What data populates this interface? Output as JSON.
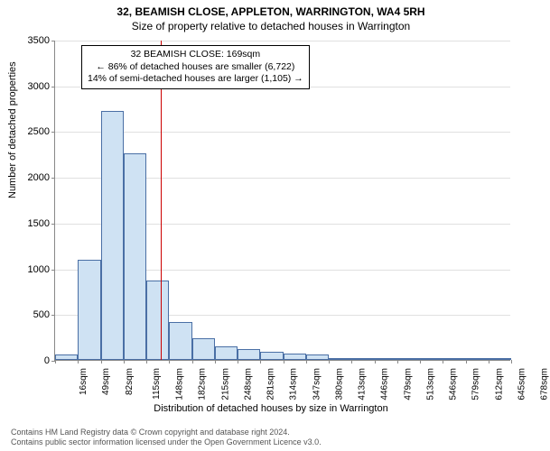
{
  "title": "32, BEAMISH CLOSE, APPLETON, WARRINGTON, WA4 5RH",
  "subtitle": "Size of property relative to detached houses in Warrington",
  "ylabel": "Number of detached properties",
  "xlabel": "Distribution of detached houses by size in Warrington",
  "chart": {
    "type": "histogram",
    "ylim": [
      0,
      3500
    ],
    "ytick_step": 500,
    "yticks": [
      0,
      500,
      1000,
      1500,
      2000,
      2500,
      3000,
      3500
    ],
    "x_min": 16,
    "x_max": 678,
    "x_step": 33,
    "xtick_labels": [
      "16sqm",
      "49sqm",
      "82sqm",
      "115sqm",
      "148sqm",
      "182sqm",
      "215sqm",
      "248sqm",
      "281sqm",
      "314sqm",
      "347sqm",
      "380sqm",
      "413sqm",
      "446sqm",
      "479sqm",
      "513sqm",
      "546sqm",
      "579sqm",
      "612sqm",
      "645sqm",
      "678sqm"
    ],
    "bar_values": [
      60,
      1090,
      2720,
      2260,
      870,
      410,
      240,
      150,
      120,
      90,
      70,
      60,
      20,
      0,
      0,
      0,
      0,
      0,
      0,
      0
    ],
    "bar_fill": "#cfe2f3",
    "bar_stroke": "#4a6fa5",
    "grid_color": "#e0e0e0",
    "axis_color": "#888888",
    "background_color": "#ffffff",
    "bar_fill_opacity": 0.65,
    "ref_value": 169,
    "ref_color": "#cc0000"
  },
  "info_box": {
    "line1": "32 BEAMISH CLOSE: 169sqm",
    "line2": "← 86% of detached houses are smaller (6,722)",
    "line3": "14% of semi-detached houses are larger (1,105) →"
  },
  "footer": {
    "line1": "Contains HM Land Registry data © Crown copyright and database right 2024.",
    "line2": "Contains public sector information licensed under the Open Government Licence v3.0."
  },
  "fonts": {
    "title_size": 12,
    "subtitle_size": 12,
    "axis_label_size": 11,
    "tick_size": 10,
    "info_size": 10.5,
    "footer_size": 9
  }
}
